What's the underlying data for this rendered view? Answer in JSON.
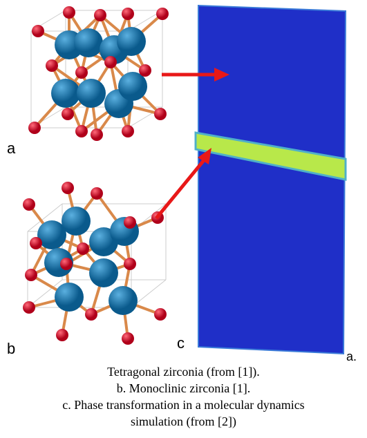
{
  "labels": {
    "a": "a",
    "b": "b",
    "c": "c",
    "a_dot": "a."
  },
  "caption": {
    "lines": [
      "Tetragonal zirconia (from [1]).",
      "b. Monoclinic zirconia [1].",
      "c. Phase transformation in a molecular dynamics",
      "simulation (from [2])"
    ]
  }
}
